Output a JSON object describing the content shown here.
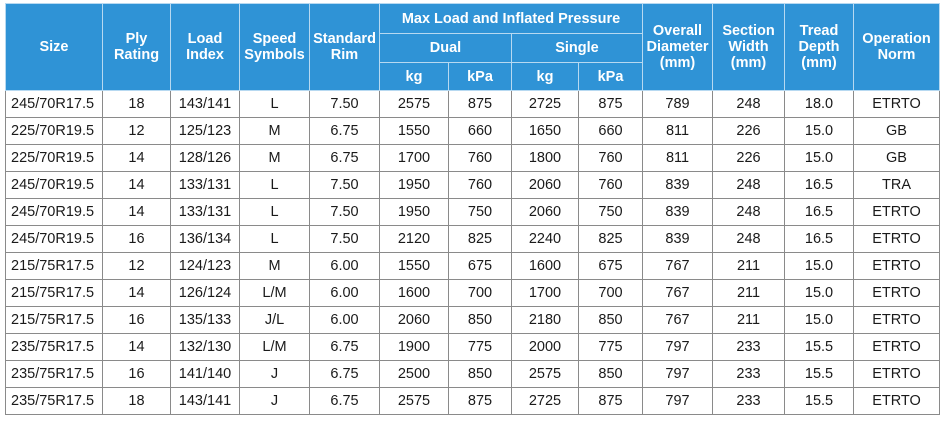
{
  "headers": {
    "size": "Size",
    "ply": [
      "Ply",
      "Rating"
    ],
    "load": [
      "Load",
      "Index"
    ],
    "speed": [
      "Speed",
      "Symbols"
    ],
    "rim": [
      "Standard",
      "Rim"
    ],
    "max_load": "Max Load and Inflated Pressure",
    "dual": "Dual",
    "single": "Single",
    "kg": "kg",
    "kpa": "kPa",
    "diameter": [
      "Overall",
      "Diameter",
      "(mm)"
    ],
    "section": [
      "Section",
      "Width",
      "(mm)"
    ],
    "tread": [
      "Tread",
      "Depth",
      "(mm)"
    ],
    "norm": [
      "Operation",
      "Norm"
    ]
  },
  "rows": [
    [
      "245/70R17.5",
      "18",
      "143/141",
      "L",
      "7.50",
      "2575",
      "875",
      "2725",
      "875",
      "789",
      "248",
      "18.0",
      "ETRTO"
    ],
    [
      "225/70R19.5",
      "12",
      "125/123",
      "M",
      "6.75",
      "1550",
      "660",
      "1650",
      "660",
      "811",
      "226",
      "15.0",
      "GB"
    ],
    [
      "225/70R19.5",
      "14",
      "128/126",
      "M",
      "6.75",
      "1700",
      "760",
      "1800",
      "760",
      "811",
      "226",
      "15.0",
      "GB"
    ],
    [
      "245/70R19.5",
      "14",
      "133/131",
      "L",
      "7.50",
      "1950",
      "760",
      "2060",
      "760",
      "839",
      "248",
      "16.5",
      "TRA"
    ],
    [
      "245/70R19.5",
      "14",
      "133/131",
      "L",
      "7.50",
      "1950",
      "750",
      "2060",
      "750",
      "839",
      "248",
      "16.5",
      "ETRTO"
    ],
    [
      "245/70R19.5",
      "16",
      "136/134",
      "L",
      "7.50",
      "2120",
      "825",
      "2240",
      "825",
      "839",
      "248",
      "16.5",
      "ETRTO"
    ],
    [
      "215/75R17.5",
      "12",
      "124/123",
      "M",
      "6.00",
      "1550",
      "675",
      "1600",
      "675",
      "767",
      "211",
      "15.0",
      "ETRTO"
    ],
    [
      "215/75R17.5",
      "14",
      "126/124",
      "L/M",
      "6.00",
      "1600",
      "700",
      "1700",
      "700",
      "767",
      "211",
      "15.0",
      "ETRTO"
    ],
    [
      "215/75R17.5",
      "16",
      "135/133",
      "J/L",
      "6.00",
      "2060",
      "850",
      "2180",
      "850",
      "767",
      "211",
      "15.0",
      "ETRTO"
    ],
    [
      "235/75R17.5",
      "14",
      "132/130",
      "L/M",
      "6.75",
      "1900",
      "775",
      "2000",
      "775",
      "797",
      "233",
      "15.5",
      "ETRTO"
    ],
    [
      "235/75R17.5",
      "16",
      "141/140",
      "J",
      "6.75",
      "2500",
      "850",
      "2575",
      "850",
      "797",
      "233",
      "15.5",
      "ETRTO"
    ],
    [
      "235/75R17.5",
      "18",
      "143/141",
      "J",
      "6.75",
      "2575",
      "875",
      "2725",
      "875",
      "797",
      "233",
      "15.5",
      "ETRTO"
    ]
  ]
}
